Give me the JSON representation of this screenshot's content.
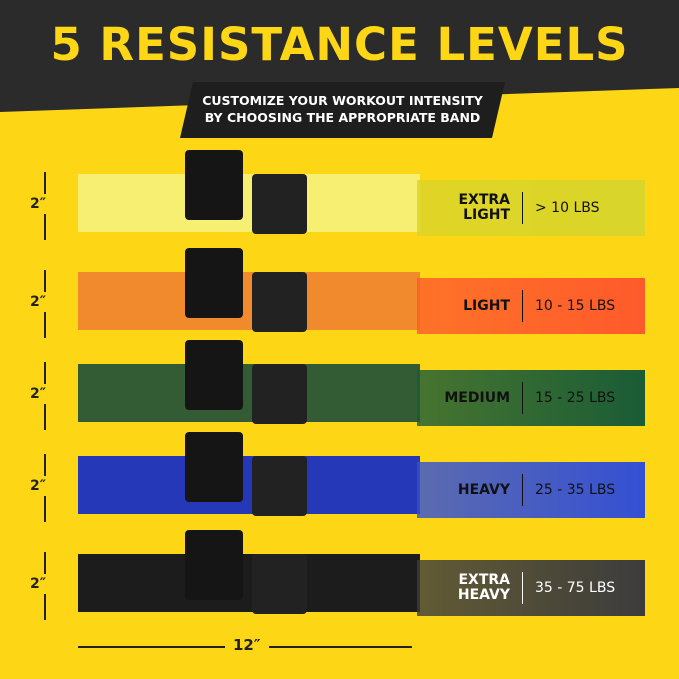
{
  "header": {
    "title": "5 RESISTANCE LEVELS",
    "subtitle_line1": "CUSTOMIZE YOUR WORKOUT INTENSITY",
    "subtitle_line2": "BY CHOOSING THE APPROPRIATE BAND"
  },
  "width_label": "2″",
  "length_label": "12″",
  "bands": [
    {
      "level": "EXTRA LIGHT",
      "range": "> 10 LBS",
      "band_color": "#f6ef72",
      "panel_color": "#d9d52a",
      "text_color": "#111"
    },
    {
      "level": "LIGHT",
      "range": "10 - 15 LBS",
      "band_color": "#f08a2c",
      "panel_color": "#ff5a2c",
      "text_color": "#111"
    },
    {
      "level": "MEDIUM",
      "range": "15 - 25 LBS",
      "band_color": "#335c34",
      "panel_color": "#1a5c36",
      "text_color": "#111"
    },
    {
      "level": "HEAVY",
      "range": "25 - 35 LBS",
      "band_color": "#2438b8",
      "panel_color": "#3450d4",
      "text_color": "#111"
    },
    {
      "level": "EXTRA HEAVY",
      "range": "35 - 75 LBS",
      "band_color": "#1c1c1c",
      "panel_color": "#3c3c3c",
      "text_color": "#fff"
    }
  ]
}
